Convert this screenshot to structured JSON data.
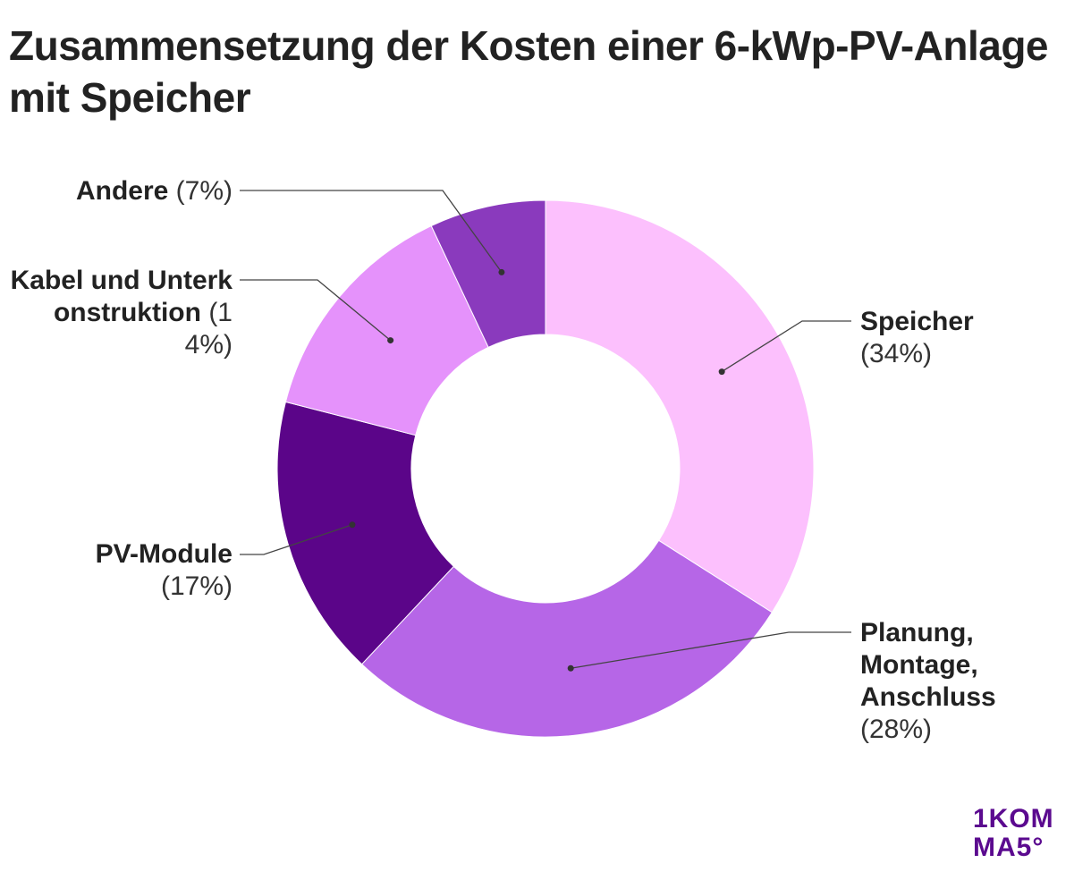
{
  "chart_data": {
    "type": "pie",
    "variant": "donut",
    "title": "Zusammensetzung der Kosten einer 6-kWp-PV-Anlage mit Speicher",
    "slices": [
      {
        "label": "Speicher",
        "value": 34,
        "value_label": "(34%)",
        "color": "#fcc0fd"
      },
      {
        "label": "Planung, Montage, Anschluss",
        "value": 28,
        "value_label": "(28%)",
        "color": "#b666e7"
      },
      {
        "label": "PV-Module",
        "value": 17,
        "value_label": "(17%)",
        "color": "#5b0589"
      },
      {
        "label": "Kabel und Unterkonstruktion",
        "value": 14,
        "value_label": "(14%)",
        "color": "#e592fb"
      },
      {
        "label": "Andere",
        "value": 7,
        "value_label": "(7%)",
        "color": "#8a3abd"
      }
    ],
    "start": "top",
    "direction": "clockwise"
  },
  "logo": {
    "line1": "1KOM",
    "line2": "MA5°",
    "color": "#5b0a8f"
  }
}
